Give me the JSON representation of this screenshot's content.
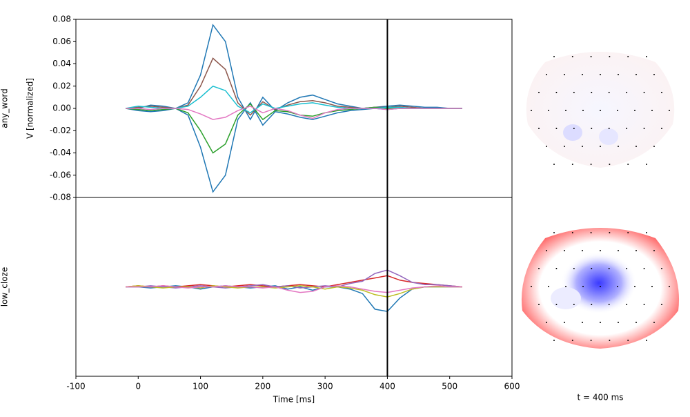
{
  "chart_data": [
    {
      "type": "line",
      "row_label": "any_word",
      "ylabel": "V [normalized]",
      "xlim": [
        -100,
        600
      ],
      "ylim": [
        -0.08,
        0.08
      ],
      "yticks": [
        -0.08,
        -0.06,
        -0.04,
        -0.02,
        {
          "value": 0,
          "label": "0.00"
        },
        0.02,
        0.04,
        0.06,
        0.08
      ],
      "vline": 400,
      "x": [
        -20,
        0,
        20,
        40,
        60,
        80,
        100,
        120,
        140,
        160,
        180,
        200,
        220,
        240,
        260,
        280,
        300,
        320,
        340,
        360,
        380,
        400,
        420,
        440,
        460,
        480,
        500,
        520
      ],
      "series": [
        {
          "name": "s1",
          "color": "#1f77b4",
          "values": [
            0,
            0,
            0.003,
            0.002,
            0,
            0.005,
            0.03,
            0.075,
            0.06,
            0.01,
            -0.01,
            0.01,
            -0.002,
            0.005,
            0.01,
            0.012,
            0.008,
            0.004,
            0.002,
            0,
            0.001,
            0.002,
            0.003,
            0.002,
            0.001,
            0.001,
            0,
            0
          ]
        },
        {
          "name": "s2",
          "color": "#1f77b4",
          "values": [
            0,
            -0.002,
            -0.003,
            -0.002,
            0,
            -0.006,
            -0.035,
            -0.075,
            -0.06,
            -0.01,
            0.005,
            -0.015,
            -0.003,
            -0.005,
            -0.008,
            -0.01,
            -0.007,
            -0.004,
            -0.002,
            -0.001,
            0,
            -0.001,
            0,
            0,
            0,
            0,
            0,
            0
          ]
        },
        {
          "name": "s3",
          "color": "#8c564b",
          "values": [
            0,
            0.001,
            0.002,
            0.001,
            0,
            0.003,
            0.02,
            0.045,
            0.035,
            0.005,
            -0.006,
            0.006,
            -0.001,
            0.003,
            0.006,
            0.007,
            0.005,
            0.002,
            0.001,
            0,
            0.001,
            0.001,
            0.002,
            0.001,
            0,
            0,
            0,
            0
          ]
        },
        {
          "name": "s4",
          "color": "#2ca02c",
          "values": [
            0,
            -0.001,
            -0.002,
            -0.001,
            0,
            -0.004,
            -0.02,
            -0.04,
            -0.032,
            -0.006,
            0.004,
            -0.01,
            -0.002,
            -0.003,
            -0.006,
            -0.007,
            -0.004,
            -0.002,
            -0.001,
            0,
            0.001,
            0,
            0,
            0,
            0,
            0,
            0,
            0
          ]
        },
        {
          "name": "s5",
          "color": "#17becf",
          "values": [
            0,
            0.002,
            0.001,
            0,
            0,
            0.002,
            0.01,
            0.02,
            0.016,
            0.002,
            -0.004,
            0.004,
            0,
            0.002,
            0.004,
            0.005,
            0.003,
            0.001,
            0,
            0,
            0,
            0.001,
            0.001,
            0,
            0,
            0,
            0,
            0
          ]
        },
        {
          "name": "s6",
          "color": "#e377c2",
          "values": [
            0,
            0,
            -0.001,
            0,
            0,
            -0.001,
            -0.005,
            -0.01,
            -0.008,
            -0.002,
            0.002,
            -0.004,
            0,
            -0.002,
            -0.006,
            -0.009,
            -0.004,
            -0.001,
            0,
            0,
            0,
            -0.001,
            0,
            0,
            0,
            0,
            0,
            0
          ]
        }
      ]
    },
    {
      "type": "line",
      "row_label": "low_cloze",
      "xlabel": "Time [ms]",
      "xlim": [
        -100,
        600
      ],
      "ylim": [
        -0.08,
        0.08
      ],
      "xticks": [
        -100,
        0,
        100,
        200,
        300,
        400,
        500,
        600
      ],
      "vline": 400,
      "x": [
        -20,
        0,
        20,
        40,
        60,
        80,
        100,
        120,
        140,
        160,
        180,
        200,
        220,
        240,
        260,
        280,
        300,
        320,
        340,
        360,
        380,
        400,
        420,
        440,
        460,
        480,
        500,
        520
      ],
      "series": [
        {
          "name": "s1",
          "color": "#1f77b4",
          "values": [
            0,
            0,
            -0.001,
            0,
            0.001,
            0,
            -0.002,
            0,
            0.001,
            0,
            -0.001,
            0,
            0.001,
            -0.002,
            0,
            -0.003,
            0,
            0,
            -0.002,
            -0.006,
            -0.02,
            -0.022,
            -0.01,
            -0.002,
            0,
            0,
            0,
            0
          ]
        },
        {
          "name": "s2",
          "color": "#d62728",
          "values": [
            0,
            0.001,
            0,
            0.001,
            0,
            0.001,
            0.002,
            0.001,
            0,
            0.001,
            0.002,
            0.001,
            0,
            0.001,
            0.002,
            0.001,
            0,
            0.002,
            0.004,
            0.006,
            0.008,
            0.01,
            0.006,
            0.004,
            0.003,
            0.002,
            0.001,
            0
          ]
        },
        {
          "name": "s3",
          "color": "#9467bd",
          "values": [
            0,
            0,
            0.001,
            0,
            -0.001,
            0,
            0.001,
            0,
            -0.001,
            0,
            0.001,
            0.002,
            0,
            0.001,
            -0.001,
            0,
            0.001,
            0,
            0.003,
            0.005,
            0.012,
            0.015,
            0.01,
            0.004,
            0.002,
            0.002,
            0.001,
            0
          ]
        },
        {
          "name": "s4",
          "color": "#bcbd22",
          "values": [
            0,
            0.001,
            0,
            -0.001,
            0,
            0,
            -0.001,
            0.001,
            0,
            -0.001,
            0,
            0,
            -0.001,
            0,
            0.001,
            0,
            -0.002,
            0,
            -0.001,
            -0.003,
            -0.007,
            -0.009,
            -0.006,
            -0.002,
            0,
            0,
            0,
            0
          ]
        },
        {
          "name": "s5",
          "color": "#e377c2",
          "values": [
            0,
            0,
            0,
            0.001,
            0,
            -0.001,
            0,
            0,
            0.001,
            0,
            0,
            -0.001,
            0,
            -0.003,
            -0.005,
            -0.004,
            0,
            0.001,
            0,
            -0.002,
            -0.004,
            -0.005,
            -0.003,
            -0.001,
            0,
            0.001,
            0,
            0
          ]
        }
      ]
    }
  ],
  "topomap_label": "t = 400 ms"
}
